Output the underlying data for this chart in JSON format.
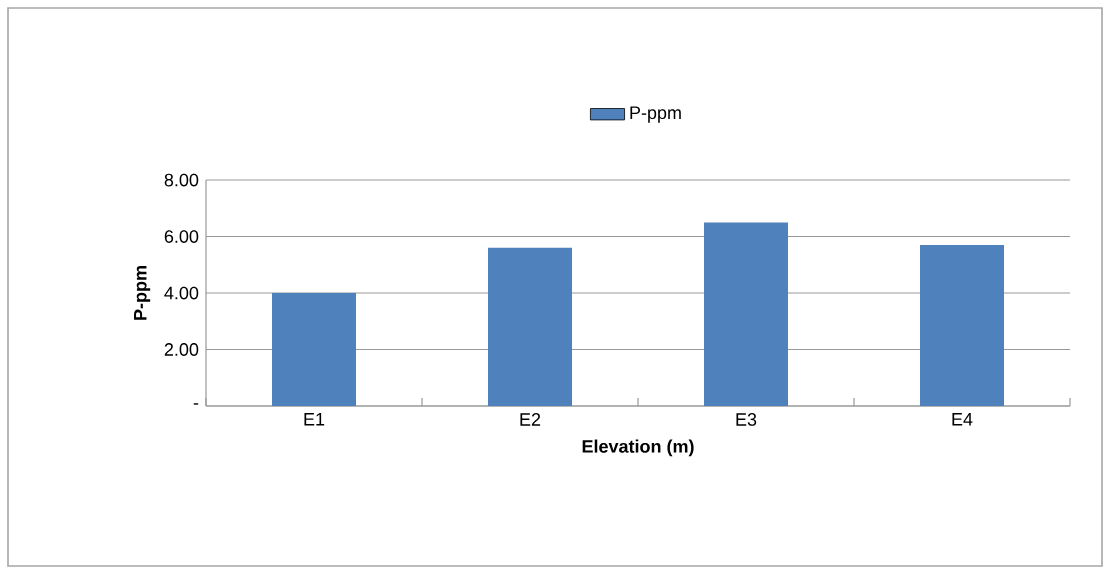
{
  "chart_data": {
    "type": "bar",
    "xlabel": "Elevation (m)",
    "ylabel": "P-ppm",
    "categories": [
      "E1",
      "E2",
      "E3",
      "E4"
    ],
    "series": [
      {
        "name": "P-ppm",
        "color": "#4f81bd",
        "values": [
          4.0,
          5.6,
          6.5,
          5.7
        ]
      }
    ],
    "ylim": [
      0,
      8
    ],
    "yticks": [
      {
        "value": 0,
        "label": "-"
      },
      {
        "value": 2,
        "label": "2.00"
      },
      {
        "value": 4,
        "label": "4.00"
      },
      {
        "value": 6,
        "label": "6.00"
      },
      {
        "value": 8,
        "label": "8.00"
      }
    ],
    "grid": "y",
    "legend": "top"
  }
}
